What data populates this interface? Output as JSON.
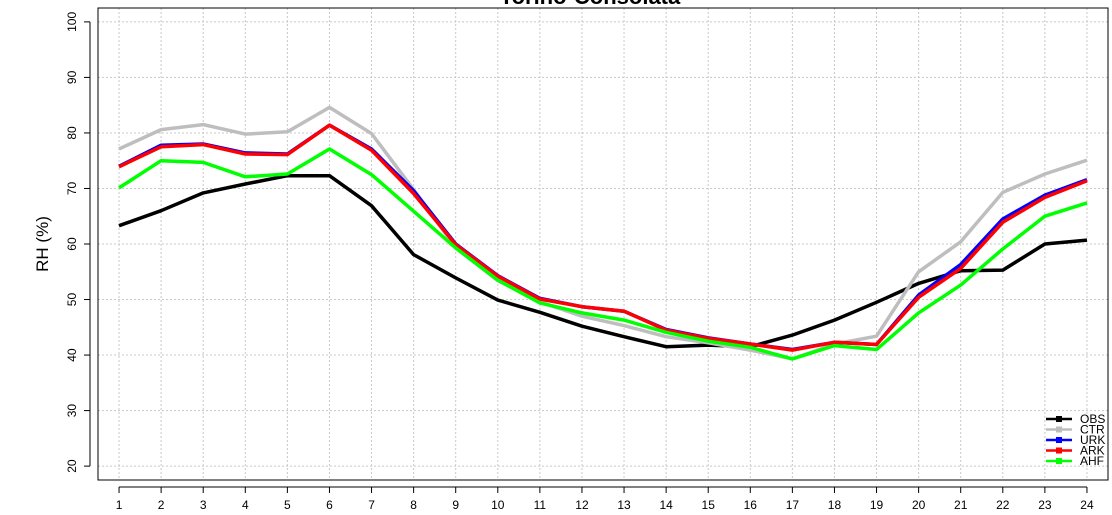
{
  "chart_data": {
    "type": "line",
    "title": "Torino-Consolata",
    "xlabel": "",
    "ylabel": "RH (%)",
    "x": [
      1,
      2,
      3,
      4,
      5,
      6,
      7,
      8,
      9,
      10,
      11,
      12,
      13,
      14,
      15,
      16,
      17,
      18,
      19,
      20,
      21,
      22,
      23,
      24
    ],
    "xlim": [
      0.5,
      24.5
    ],
    "ylim": [
      17.5,
      102.5
    ],
    "yticks": [
      20,
      30,
      40,
      50,
      60,
      70,
      80,
      90,
      100
    ],
    "grid": true,
    "legend_position": "bottom-right",
    "series": [
      {
        "name": "OBS",
        "color": "#000000",
        "values": [
          63.3,
          66.0,
          69.2,
          70.8,
          72.3,
          72.3,
          66.9,
          58.1,
          53.9,
          49.9,
          47.7,
          45.2,
          43.3,
          41.5,
          41.8,
          41.5,
          43.6,
          46.3,
          49.5,
          52.9,
          55.2,
          55.3,
          60.0,
          60.7
        ]
      },
      {
        "name": "CTR",
        "color": "#bebebe",
        "values": [
          77.1,
          80.6,
          81.5,
          79.8,
          80.2,
          84.6,
          79.9,
          69.8,
          59.3,
          53.4,
          49.6,
          47.0,
          45.3,
          43.3,
          42.2,
          40.9,
          39.3,
          42.0,
          43.4,
          55.0,
          60.4,
          69.3,
          72.6,
          75.1
        ]
      },
      {
        "name": "URK",
        "color": "#0000ff",
        "values": [
          74.0,
          77.8,
          78.0,
          76.4,
          76.2,
          81.4,
          77.1,
          69.6,
          60.0,
          54.3,
          50.2,
          48.7,
          47.9,
          44.6,
          43.1,
          42.0,
          41.0,
          42.3,
          41.9,
          50.8,
          56.3,
          64.5,
          68.8,
          71.6
        ]
      },
      {
        "name": "ARK",
        "color": "#ff0000",
        "values": [
          73.9,
          77.5,
          77.9,
          76.2,
          76.1,
          81.4,
          76.9,
          69.1,
          59.9,
          54.2,
          50.1,
          48.7,
          47.9,
          44.5,
          43.0,
          42.0,
          40.9,
          42.3,
          41.9,
          50.4,
          55.6,
          63.9,
          68.4,
          71.4
        ]
      },
      {
        "name": "AHF",
        "color": "#00ff00",
        "values": [
          70.1,
          75.0,
          74.7,
          72.1,
          72.6,
          77.1,
          72.5,
          65.9,
          59.3,
          53.5,
          49.4,
          47.6,
          46.3,
          44.1,
          42.5,
          41.4,
          39.3,
          41.7,
          41.0,
          47.6,
          52.6,
          59.1,
          65.0,
          67.4
        ]
      }
    ]
  }
}
